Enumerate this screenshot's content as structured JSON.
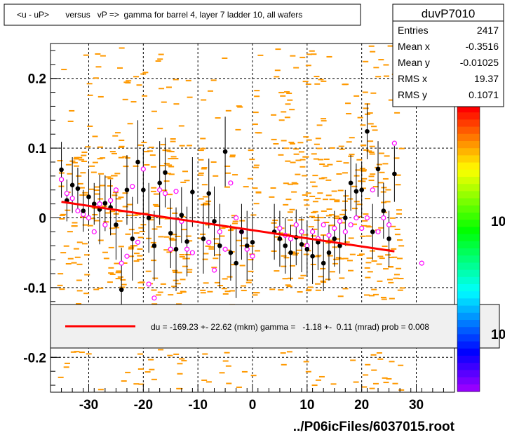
{
  "title": "<u - uP>       versus   vP =>  gamma for barrel 4, layer 7 ladder 10, all wafers",
  "footer": "../P06icFiles/6037015.root",
  "stats": {
    "name": "duvP7010",
    "rows": [
      {
        "label": "Entries",
        "value": "2417"
      },
      {
        "label": "Mean x",
        "value": "-0.3516"
      },
      {
        "label": "Mean y",
        "value": "-0.01025"
      },
      {
        "label": "RMS x",
        "value": "19.37"
      },
      {
        "label": "RMS y",
        "value": "0.1071"
      }
    ]
  },
  "legend": {
    "text": "du = -169.23 +- 22.62 (mkm) gamma =   -1.18 +-  0.11 (mrad) prob = 0.008",
    "color": "#ff0000"
  },
  "palette_labels": [
    "10",
    "10"
  ],
  "colors": {
    "scatter": "#ff9900",
    "profile": "#000000",
    "open_marker": "#ff00ff",
    "fit_line": "#ff0000"
  },
  "chart_data": {
    "type": "scatter",
    "xlim": [
      -37,
      37
    ],
    "ylim": [
      -0.25,
      0.25
    ],
    "xticks": [
      -30,
      -20,
      -10,
      0,
      10,
      20,
      30
    ],
    "yticks": [
      -0.2,
      -0.1,
      0,
      0.1,
      0.2
    ],
    "xtick_labels": [
      "-30",
      "-20",
      "-10",
      "0",
      "10",
      "20",
      "30"
    ],
    "ytick_labels": [
      "-0.2",
      "-0.1",
      "0",
      "0.1",
      "0.2"
    ],
    "grid": true,
    "fit": {
      "x": [
        -35,
        26
      ],
      "y": [
        0.023,
        -0.048
      ]
    },
    "profile_filled": [
      [
        -35,
        0.069,
        0.04
      ],
      [
        -34,
        0.025,
        0.03
      ],
      [
        -33,
        0.047,
        0.04
      ],
      [
        -32,
        0.042,
        0.03
      ],
      [
        -31,
        0.01,
        0.03
      ],
      [
        -30,
        0.03,
        0.04
      ],
      [
        -29,
        0.02,
        0.03
      ],
      [
        -28,
        0.012,
        0.05
      ],
      [
        -27,
        0.021,
        0.04
      ],
      [
        -26,
        0.015,
        0.04
      ],
      [
        -25,
        -0.01,
        0.05
      ],
      [
        -24,
        -0.103,
        0.06
      ],
      [
        -23,
        0.04,
        0.05
      ],
      [
        -22,
        -0.03,
        0.06
      ],
      [
        -21,
        0.08,
        0.06
      ],
      [
        -20,
        0.04,
        0.06
      ],
      [
        -19,
        0.0,
        0.05
      ],
      [
        -18,
        -0.04,
        0.05
      ],
      [
        -17,
        0.05,
        0.06
      ],
      [
        -16,
        0.065,
        0.05
      ],
      [
        -15,
        -0.022,
        0.05
      ],
      [
        -14,
        -0.045,
        0.06
      ],
      [
        -13,
        0.004,
        0.04
      ],
      [
        -12,
        -0.034,
        0.05
      ],
      [
        -11,
        0.037,
        0.05
      ],
      [
        -9,
        -0.03,
        0.05
      ],
      [
        -8,
        0.035,
        0.05
      ],
      [
        -7,
        -0.005,
        0.05
      ],
      [
        -6,
        -0.04,
        0.06
      ],
      [
        -5,
        0.095,
        0.05
      ],
      [
        -4,
        -0.05,
        0.04
      ],
      [
        -3,
        -0.065,
        0.05
      ],
      [
        -2,
        -0.02,
        0.04
      ],
      [
        -1,
        -0.04,
        0.05
      ],
      [
        0,
        -0.035,
        0.04
      ],
      [
        4,
        -0.02,
        0.04
      ],
      [
        5,
        -0.03,
        0.04
      ],
      [
        6,
        -0.04,
        0.04
      ],
      [
        7,
        -0.05,
        0.04
      ],
      [
        8,
        -0.028,
        0.04
      ],
      [
        9,
        -0.038,
        0.04
      ],
      [
        10,
        -0.045,
        0.04
      ],
      [
        11,
        -0.055,
        0.04
      ],
      [
        12,
        -0.035,
        0.04
      ],
      [
        13,
        -0.065,
        0.04
      ],
      [
        14,
        -0.05,
        0.04
      ],
      [
        15,
        -0.03,
        0.04
      ],
      [
        16,
        -0.04,
        0.04
      ],
      [
        17,
        0.0,
        0.04
      ],
      [
        18,
        0.05,
        0.04
      ],
      [
        19,
        0.038,
        0.04
      ],
      [
        20,
        0.04,
        0.04
      ],
      [
        21,
        0.124,
        0.04
      ],
      [
        22,
        -0.02,
        0.04
      ],
      [
        23,
        0.07,
        0.04
      ],
      [
        24,
        0.01,
        0.04
      ],
      [
        25,
        -0.03,
        0.04
      ],
      [
        26,
        0.063,
        0.04
      ]
    ],
    "profile_open": [
      [
        -35,
        0.055
      ],
      [
        -34,
        0.035
      ],
      [
        -33,
        0.028
      ],
      [
        -32,
        0.01
      ],
      [
        -31,
        0.005
      ],
      [
        -30,
        0.0
      ],
      [
        -29,
        -0.02
      ],
      [
        -28,
        0.02
      ],
      [
        -27,
        -0.01
      ],
      [
        -26,
        0.025
      ],
      [
        -25,
        0.04
      ],
      [
        -24,
        -0.065
      ],
      [
        -23,
        -0.055
      ],
      [
        -22,
        0.045
      ],
      [
        -21,
        -0.035
      ],
      [
        -20,
        0.07
      ],
      [
        -19,
        -0.095
      ],
      [
        -18,
        -0.115
      ],
      [
        -17,
        0.04
      ],
      [
        -16,
        0.035
      ],
      [
        -15,
        -0.045
      ],
      [
        -14,
        0.038
      ],
      [
        -13,
        -0.005
      ],
      [
        -12,
        -0.045
      ],
      [
        -11,
        -0.05
      ],
      [
        -8,
        -0.035
      ],
      [
        -7,
        -0.075
      ],
      [
        -6,
        -0.02
      ],
      [
        -5,
        -0.045
      ],
      [
        -4,
        0.05
      ],
      [
        -3,
        0.0
      ],
      [
        -2,
        -0.02
      ],
      [
        -1,
        -0.045
      ],
      [
        0,
        -0.055
      ],
      [
        5,
        -0.015
      ],
      [
        6,
        -0.025
      ],
      [
        7,
        -0.03
      ],
      [
        8,
        -0.01
      ],
      [
        9,
        -0.02
      ],
      [
        10,
        -0.04
      ],
      [
        11,
        -0.02
      ],
      [
        12,
        -0.03
      ],
      [
        13,
        -0.01
      ],
      [
        14,
        -0.025
      ],
      [
        15,
        -0.015
      ],
      [
        16,
        -0.005
      ],
      [
        17,
        -0.02
      ],
      [
        18,
        -0.01
      ],
      [
        19,
        0.0
      ],
      [
        20,
        -0.015
      ],
      [
        21,
        0.0
      ],
      [
        22,
        0.04
      ],
      [
        23,
        -0.02
      ],
      [
        24,
        0.0
      ],
      [
        25,
        -0.01
      ],
      [
        26,
        0.107
      ],
      [
        31,
        -0.065
      ]
    ]
  }
}
